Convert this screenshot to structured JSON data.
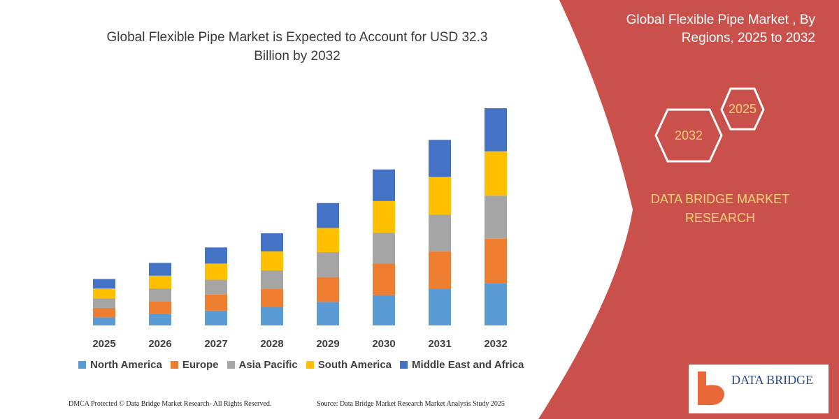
{
  "chart_data": {
    "type": "bar",
    "stacked": true,
    "title": "Global Flexible Pipe Market is Expected to Account for USD 32.3 Billion by 2032",
    "categories": [
      "2025",
      "2026",
      "2027",
      "2028",
      "2029",
      "2030",
      "2031",
      "2032"
    ],
    "series": [
      {
        "name": "North America",
        "color": "#5b9bd5",
        "values": [
          1.2,
          1.7,
          2.2,
          2.7,
          3.5,
          4.5,
          5.4,
          6.3
        ]
      },
      {
        "name": "Europe",
        "color": "#ed7d31",
        "values": [
          1.4,
          1.9,
          2.4,
          2.7,
          3.7,
          4.7,
          5.6,
          6.6
        ]
      },
      {
        "name": "Asia Pacific",
        "color": "#a5a5a5",
        "values": [
          1.4,
          1.9,
          2.2,
          2.8,
          3.7,
          4.6,
          5.5,
          6.4
        ]
      },
      {
        "name": "South America",
        "color": "#ffc000",
        "values": [
          1.5,
          1.9,
          2.4,
          2.8,
          3.6,
          4.7,
          5.6,
          6.6
        ]
      },
      {
        "name": "Middle East and Africa",
        "color": "#4472c4",
        "values": [
          1.4,
          1.9,
          2.4,
          2.7,
          3.7,
          4.7,
          5.5,
          6.4
        ]
      }
    ]
  },
  "panel": {
    "title": "Global Flexible Pipe Market , By Regions, 2025 to 2032",
    "hexagons": [
      "2025",
      "2032"
    ],
    "brand": "DATA BRIDGE MARKET RESEARCH"
  },
  "footer": {
    "copyright": "DMCA Protected © Data Bridge Market Research- All Rights Reserved.",
    "source": "Source: Data Bridge Market Research Market Analysis Study 2025"
  },
  "logo": "DATA BRIDGE"
}
